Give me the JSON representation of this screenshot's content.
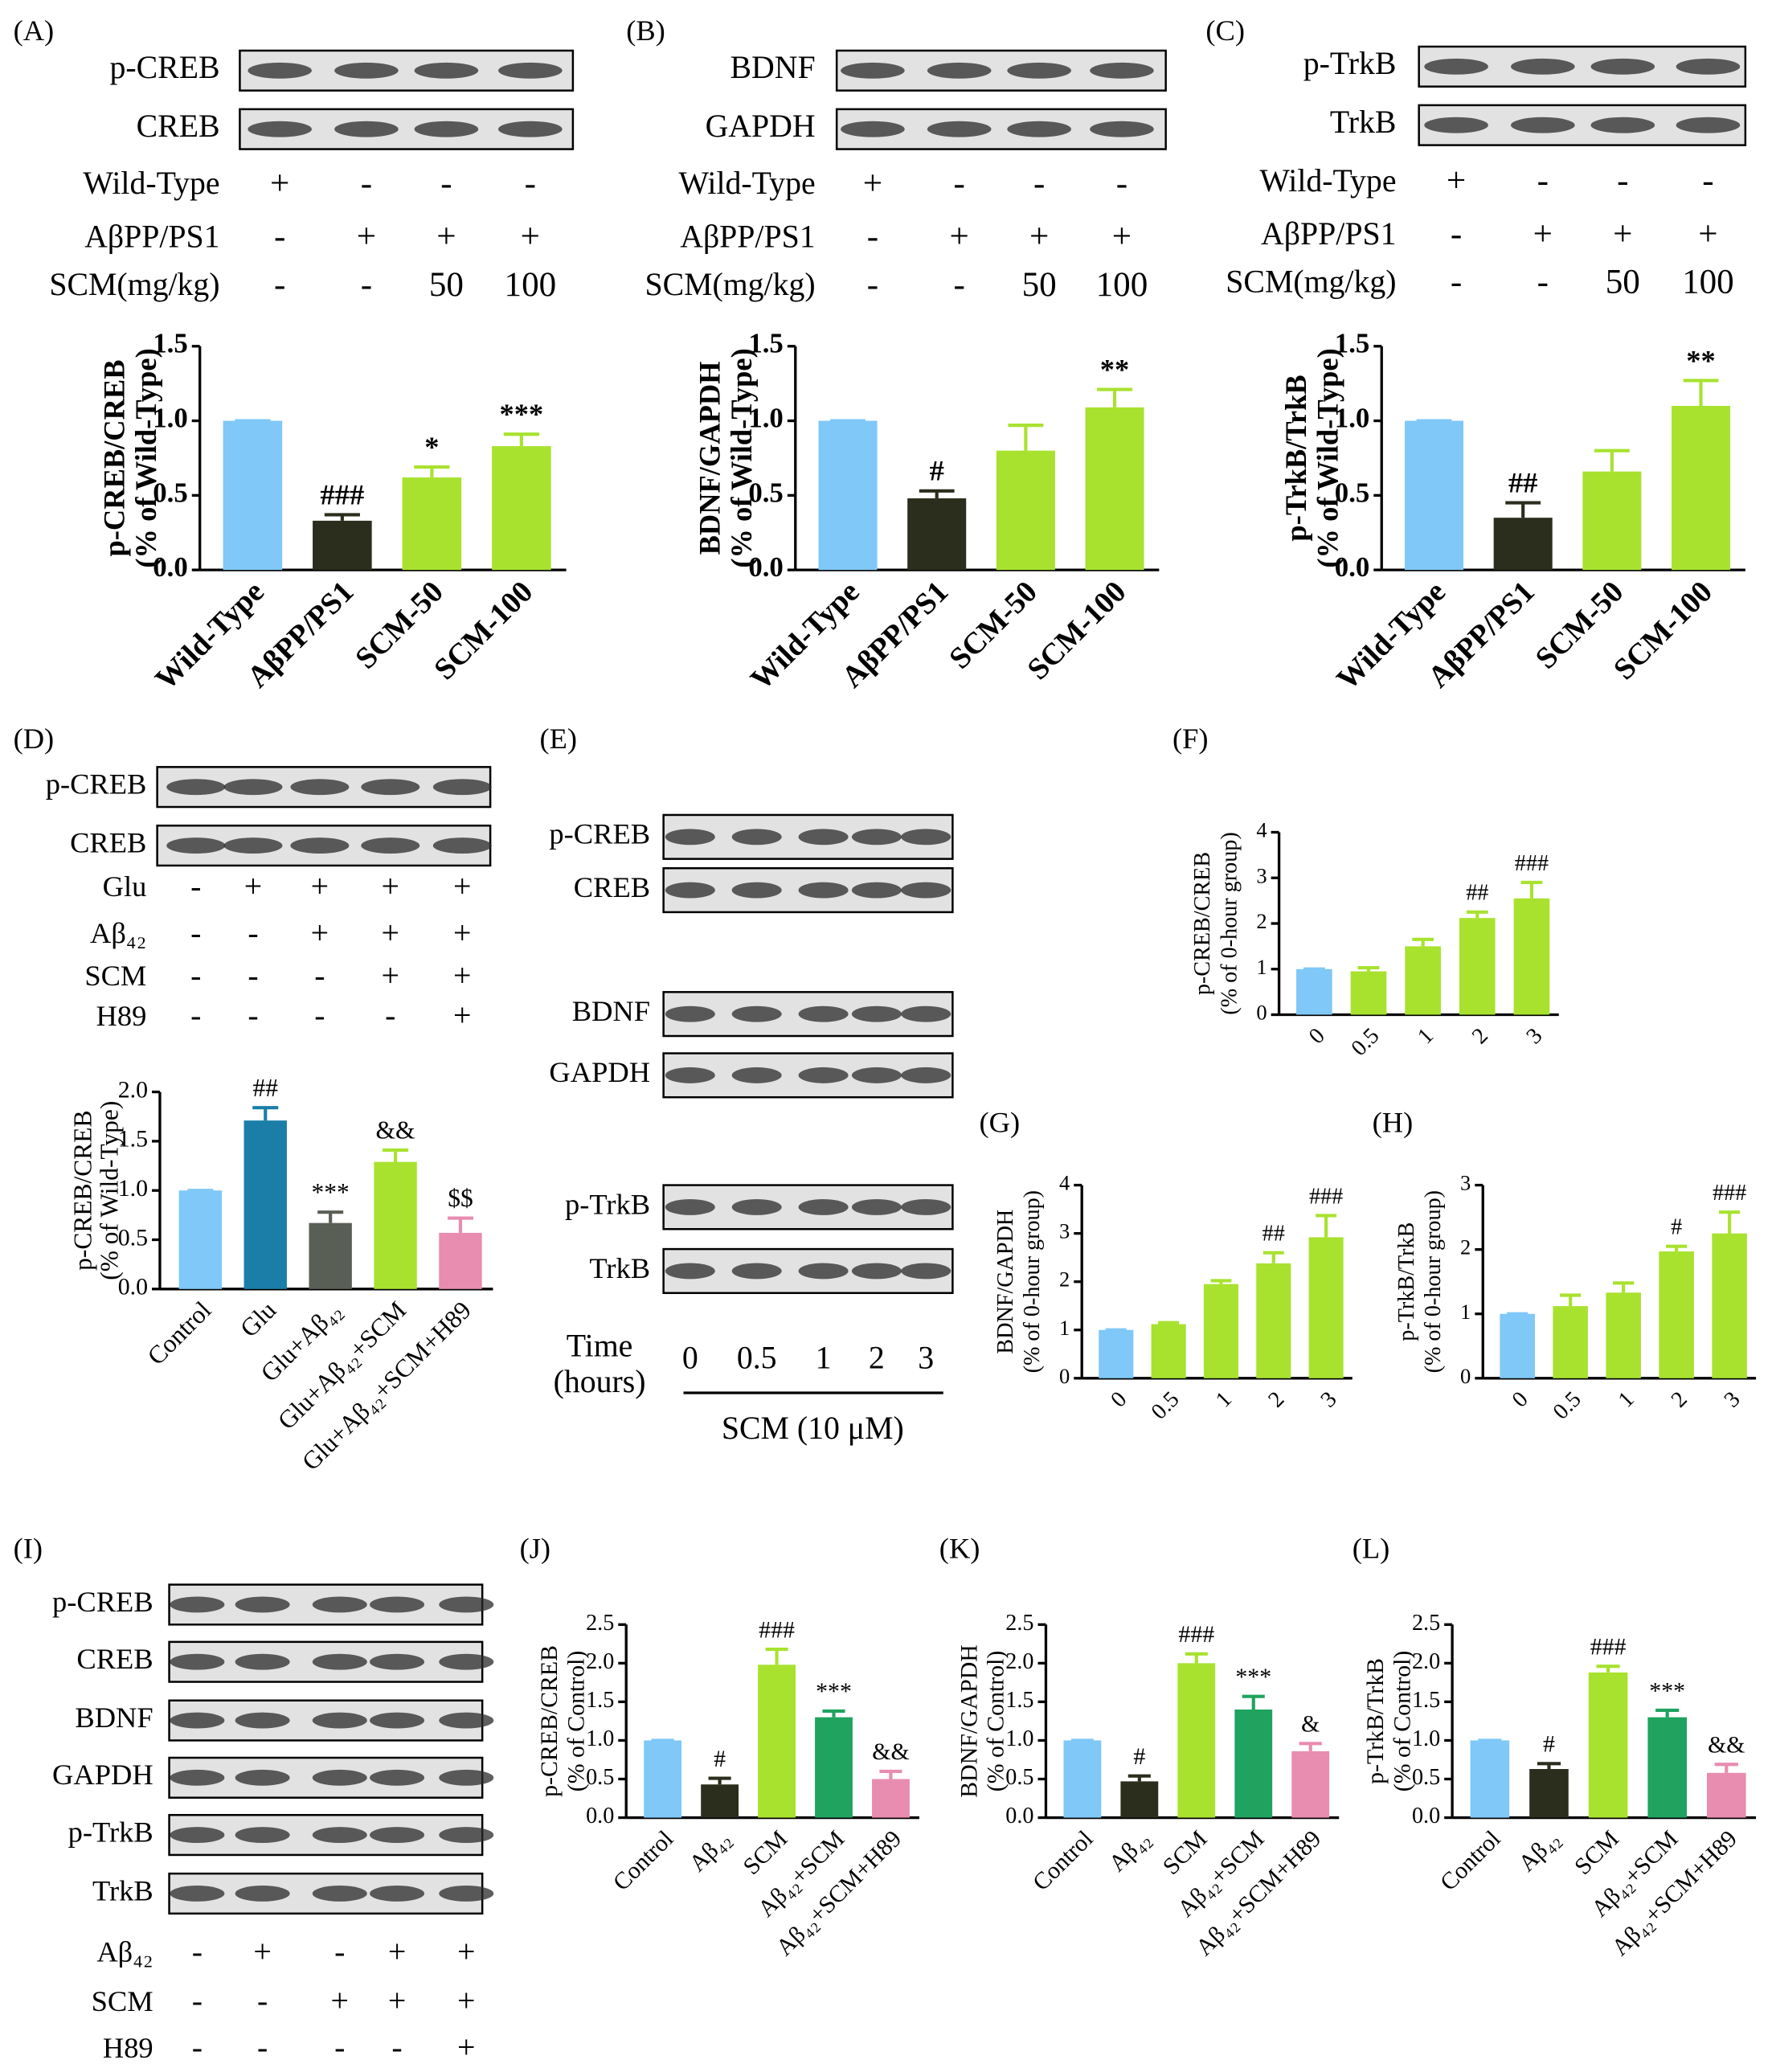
{
  "chart_data": [
    {
      "type": "bar",
      "ylabel": [
        "p-CREB/CREB",
        "(% of Wild-Type)"
      ],
      "categories": [
        "Wild-Type",
        "AβPP/PS1",
        "SCM-50",
        "SCM-100"
      ],
      "values": [
        1.0,
        0.33,
        0.62,
        0.83
      ],
      "errors": [
        0,
        0.04,
        0.07,
        0.08
      ],
      "annotations": [
        null,
        "###",
        "*",
        "***"
      ],
      "colors": [
        "#7fc8f8",
        "#2b2e1c",
        "#a8e22f",
        "#a8e22f"
      ],
      "ylim": [
        0,
        1.5
      ],
      "yticks": [
        {
          "value": 0,
          "label": "0.0"
        },
        {
          "value": 0.5,
          "label": "0.5"
        },
        {
          "value": 1,
          "label": "1.0"
        },
        {
          "value": 1.5,
          "label": "1.5"
        }
      ]
    },
    {
      "type": "bar",
      "ylabel": [
        "BDNF/GAPDH",
        "(% of Wild-Type)"
      ],
      "categories": [
        "Wild-Type",
        "AβPP/PS1",
        "SCM-50",
        "SCM-100"
      ],
      "values": [
        1.0,
        0.48,
        0.8,
        1.09
      ],
      "errors": [
        0,
        0.05,
        0.17,
        0.12
      ],
      "annotations": [
        null,
        "#",
        null,
        "**"
      ],
      "colors": [
        "#7fc8f8",
        "#2b2e1c",
        "#a8e22f",
        "#a8e22f"
      ],
      "ylim": [
        0,
        1.5
      ],
      "yticks": [
        {
          "value": 0,
          "label": "0.0"
        },
        {
          "value": 0.5,
          "label": "0.5"
        },
        {
          "value": 1,
          "label": "1.0"
        },
        {
          "value": 1.5,
          "label": "1.5"
        }
      ]
    },
    {
      "type": "bar",
      "ylabel": [
        "p-TrkB/TrkB",
        "(% of Wild-Type)"
      ],
      "categories": [
        "Wild-Type",
        "AβPP/PS1",
        "SCM-50",
        "SCM-100"
      ],
      "values": [
        1.0,
        0.35,
        0.66,
        1.1
      ],
      "errors": [
        0,
        0.1,
        0.14,
        0.17
      ],
      "annotations": [
        null,
        "##",
        null,
        "**"
      ],
      "colors": [
        "#7fc8f8",
        "#2b2e1c",
        "#a8e22f",
        "#a8e22f"
      ],
      "ylim": [
        0,
        1.5
      ],
      "yticks": [
        {
          "value": 0,
          "label": "0.0"
        },
        {
          "value": 0.5,
          "label": "0.5"
        },
        {
          "value": 1,
          "label": "1.0"
        },
        {
          "value": 1.5,
          "label": "1.5"
        }
      ]
    },
    {
      "type": "bar",
      "ylabel": [
        "p-CREB/CREB",
        "(% of Wild-Type)"
      ],
      "categories": [
        "Control",
        "Glu",
        "Glu+Aβ₄₂",
        "Glu+Aβ₄₂+SCM",
        "Glu+Aβ₄₂+SCM+H89"
      ],
      "values": [
        1.0,
        1.71,
        0.67,
        1.29,
        0.57
      ],
      "errors": [
        0,
        0.13,
        0.11,
        0.12,
        0.15
      ],
      "annotations": [
        null,
        "##",
        "***",
        "&&",
        "$$"
      ],
      "colors": [
        "#7fc8f8",
        "#1a7ea8",
        "#5a5f55",
        "#a8e22f",
        "#e88cb0"
      ],
      "ylim": [
        0,
        2.0
      ],
      "yticks": [
        {
          "value": 0,
          "label": "0.0"
        },
        {
          "value": 0.5,
          "label": "0.5"
        },
        {
          "value": 1,
          "label": "1.0"
        },
        {
          "value": 1.5,
          "label": "1.5"
        },
        {
          "value": 2,
          "label": "2.0"
        }
      ]
    },
    {
      "type": "bar",
      "panel": "(F)",
      "ylabel": [
        "p-CREB/CREB",
        "(% of 0-hour group)"
      ],
      "categories": [
        "0",
        "0.5",
        "1",
        "2",
        "3"
      ],
      "values": [
        1.0,
        0.95,
        1.5,
        2.12,
        2.55
      ],
      "errors": [
        0,
        0.08,
        0.15,
        0.13,
        0.35
      ],
      "annotations": [
        null,
        null,
        null,
        "##",
        "###"
      ],
      "colors": [
        "#7fc8f8",
        "#a8e22f",
        "#a8e22f",
        "#a8e22f",
        "#a8e22f"
      ],
      "ylim": [
        0,
        4
      ],
      "yticks": [
        0,
        1,
        2,
        3,
        4
      ]
    },
    {
      "type": "bar",
      "panel": "(G)",
      "ylabel": [
        "BDNF/GAPDH",
        "(% of 0-hour group)"
      ],
      "categories": [
        "0",
        "0.5",
        "1",
        "2",
        "3"
      ],
      "values": [
        1.0,
        1.12,
        1.95,
        2.38,
        2.92
      ],
      "errors": [
        0,
        0.03,
        0.07,
        0.22,
        0.45
      ],
      "annotations": [
        null,
        null,
        null,
        "##",
        "###"
      ],
      "colors": [
        "#7fc8f8",
        "#a8e22f",
        "#a8e22f",
        "#a8e22f",
        "#a8e22f"
      ],
      "ylim": [
        0,
        4
      ],
      "yticks": [
        0,
        1,
        2,
        3,
        4
      ]
    },
    {
      "type": "bar",
      "panel": "(H)",
      "ylabel": [
        "p-TrkB/TrkB",
        "(% of 0-hour group)"
      ],
      "categories": [
        "0",
        "0.5",
        "1",
        "2",
        "3"
      ],
      "values": [
        1.0,
        1.12,
        1.33,
        1.97,
        2.25
      ],
      "errors": [
        0,
        0.17,
        0.15,
        0.08,
        0.33
      ],
      "annotations": [
        null,
        null,
        null,
        "#",
        "###"
      ],
      "colors": [
        "#7fc8f8",
        "#a8e22f",
        "#a8e22f",
        "#a8e22f",
        "#a8e22f"
      ],
      "ylim": [
        0,
        3
      ],
      "yticks": [
        0,
        1,
        2,
        3
      ]
    },
    {
      "type": "bar",
      "panel": "(J)",
      "ylabel": [
        "p-CREB/CREB",
        "(% of Control)"
      ],
      "categories": [
        "Control",
        "Aβ₄₂",
        "SCM",
        "Aβ₄₂+SCM",
        "Aβ₄₂+SCM+H89"
      ],
      "values": [
        1.0,
        0.43,
        1.98,
        1.3,
        0.5
      ],
      "errors": [
        0,
        0.08,
        0.2,
        0.08,
        0.1
      ],
      "annotations": [
        null,
        "#",
        "###",
        "***",
        "&&"
      ],
      "colors": [
        "#7fc8f8",
        "#2b2e1c",
        "#a8e22f",
        "#1fa35f",
        "#e88cb0"
      ],
      "ylim": [
        0,
        2.5
      ],
      "yticks": [
        {
          "value": 0,
          "label": "0.0"
        },
        {
          "value": 0.5,
          "label": "0.5"
        },
        {
          "value": 1,
          "label": "1.0"
        },
        {
          "value": 1.5,
          "label": "1.5"
        },
        {
          "value": 2,
          "label": "2.0"
        },
        {
          "value": 2.5,
          "label": "2.5"
        }
      ]
    },
    {
      "type": "bar",
      "panel": "(K)",
      "ylabel": [
        "BDNF/GAPDH",
        "(% of Control)"
      ],
      "categories": [
        "Control",
        "Aβ₄₂",
        "SCM",
        "Aβ₄₂+SCM",
        "Aβ₄₂+SCM+H89"
      ],
      "values": [
        1.0,
        0.47,
        2.0,
        1.4,
        0.86
      ],
      "errors": [
        0,
        0.07,
        0.12,
        0.17,
        0.1
      ],
      "annotations": [
        null,
        "#",
        "###",
        "***",
        "&"
      ],
      "colors": [
        "#7fc8f8",
        "#2b2e1c",
        "#a8e22f",
        "#1fa35f",
        "#e88cb0"
      ],
      "ylim": [
        0,
        2.5
      ],
      "yticks": [
        {
          "value": 0,
          "label": "0.0"
        },
        {
          "value": 0.5,
          "label": "0.5"
        },
        {
          "value": 1,
          "label": "1.0"
        },
        {
          "value": 1.5,
          "label": "1.5"
        },
        {
          "value": 2,
          "label": "2.0"
        },
        {
          "value": 2.5,
          "label": "2.5"
        }
      ]
    },
    {
      "type": "bar",
      "panel": "(L)",
      "ylabel": [
        "p-TrkB/TrkB",
        "(% of Control)"
      ],
      "categories": [
        "Control",
        "Aβ₄₂",
        "SCM",
        "Aβ₄₂+SCM",
        "Aβ₄₂+SCM+H89"
      ],
      "values": [
        1.0,
        0.63,
        1.88,
        1.3,
        0.58
      ],
      "errors": [
        0,
        0.07,
        0.08,
        0.09,
        0.11
      ],
      "annotations": [
        null,
        "#",
        "###",
        "***",
        "&&"
      ],
      "colors": [
        "#7fc8f8",
        "#2b2e1c",
        "#a8e22f",
        "#1fa35f",
        "#e88cb0"
      ],
      "ylim": [
        0,
        2.5
      ],
      "yticks": [
        {
          "value": 0,
          "label": "0.0"
        },
        {
          "value": 0.5,
          "label": "0.5"
        },
        {
          "value": 1,
          "label": "1.0"
        },
        {
          "value": 1.5,
          "label": "1.5"
        },
        {
          "value": 2,
          "label": "2.0"
        },
        {
          "value": 2.5,
          "label": "2.5"
        }
      ]
    }
  ],
  "blots": [
    {
      "panel": "(A)",
      "rows": [
        "p-CREB",
        "CREB"
      ],
      "conditions": [
        {
          "label": "Wild-Type",
          "marks": [
            "+",
            "-",
            "-",
            "-"
          ]
        },
        {
          "label": "AβPP/PS1",
          "marks": [
            "-",
            "+",
            "+",
            "+"
          ]
        },
        {
          "label": "SCM(mg/kg)",
          "marks": [
            "-",
            "-",
            "50",
            "100"
          ]
        }
      ]
    },
    {
      "panel": "(B)",
      "rows": [
        "BDNF",
        "GAPDH"
      ],
      "conditions": [
        {
          "label": "Wild-Type",
          "marks": [
            "+",
            "-",
            "-",
            "-"
          ]
        },
        {
          "label": "AβPP/PS1",
          "marks": [
            "-",
            "+",
            "+",
            "+"
          ]
        },
        {
          "label": "SCM(mg/kg)",
          "marks": [
            "-",
            "-",
            "50",
            "100"
          ]
        }
      ]
    },
    {
      "panel": "(C)",
      "rows": [
        "p-TrkB",
        "TrkB"
      ],
      "conditions": [
        {
          "label": "Wild-Type",
          "marks": [
            "+",
            "-",
            "-",
            "-"
          ]
        },
        {
          "label": "AβPP/PS1",
          "marks": [
            "-",
            "+",
            "+",
            "+"
          ]
        },
        {
          "label": "SCM(mg/kg)",
          "marks": [
            "-",
            "-",
            "50",
            "100"
          ]
        }
      ]
    },
    {
      "panel": "(D)",
      "rows": [
        "p-CREB",
        "CREB"
      ],
      "conditions": [
        {
          "label": "Glu",
          "marks": [
            "-",
            "+",
            "+",
            "+",
            "+"
          ]
        },
        {
          "label": "Aβ₄₂",
          "marks": [
            "-",
            "-",
            "+",
            "+",
            "+"
          ]
        },
        {
          "label": "SCM",
          "marks": [
            "-",
            "-",
            "-",
            "+",
            "+"
          ]
        },
        {
          "label": "H89",
          "marks": [
            "-",
            "-",
            "-",
            "-",
            "+"
          ]
        }
      ]
    },
    {
      "panel": "(E)",
      "rows": [
        "p-CREB",
        "CREB",
        "BDNF",
        "GAPDH",
        "p-TrkB",
        "TrkB"
      ],
      "time": {
        "label": [
          "Time",
          "(hours)"
        ],
        "values": [
          "0",
          "0.5",
          "1",
          "2",
          "3"
        ],
        "treatment": "SCM (10 μM)"
      }
    },
    {
      "panel": "(I)",
      "rows": [
        "p-CREB",
        "CREB",
        "BDNF",
        "GAPDH",
        "p-TrkB",
        "TrkB"
      ],
      "conditions": [
        {
          "label": "Aβ₄₂",
          "marks": [
            "-",
            "+",
            "-",
            "+",
            "+"
          ]
        },
        {
          "label": "SCM",
          "marks": [
            "-",
            "-",
            "+",
            "+",
            "+"
          ]
        },
        {
          "label": "H89",
          "marks": [
            "-",
            "-",
            "-",
            "-",
            "+"
          ]
        }
      ]
    }
  ]
}
